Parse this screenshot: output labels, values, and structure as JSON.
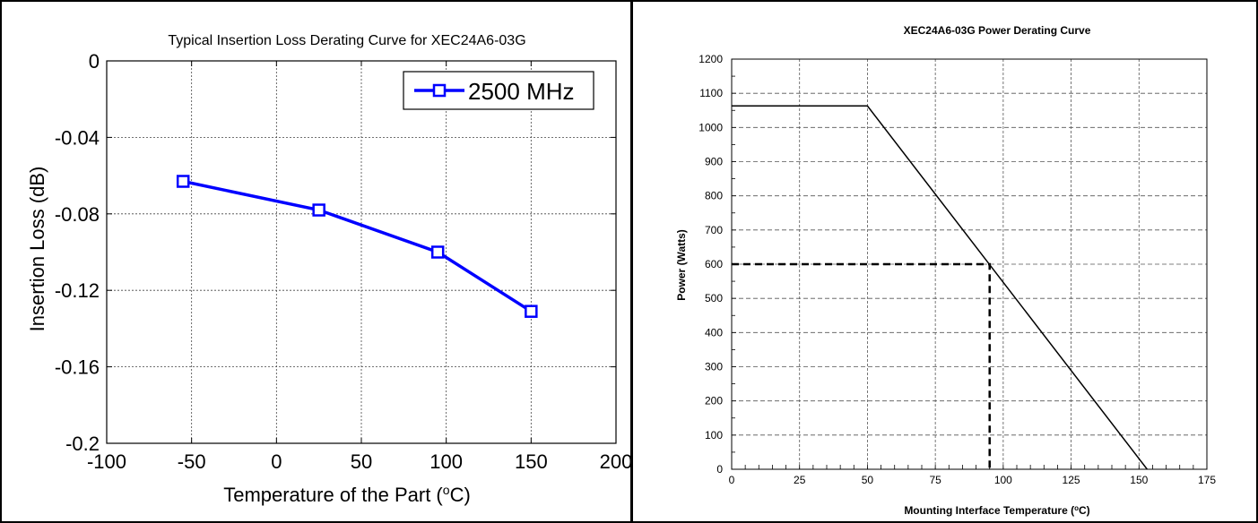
{
  "chart_data": [
    {
      "type": "line",
      "title": "Typical Insertion Loss Derating Curve for XEC24A6-03G",
      "xlabel_prefix": "Temperature of the Part (",
      "xlabel_sup": "o",
      "xlabel_suffix": "C)",
      "ylabel": "Insertion Loss (dB)",
      "xlim": [
        -100,
        200
      ],
      "ylim": [
        -0.2,
        0
      ],
      "x_ticks": [
        -100,
        -50,
        0,
        50,
        100,
        150,
        200
      ],
      "x_tick_labels": [
        "-100",
        "-50",
        "0",
        "50",
        "100",
        "150",
        "200"
      ],
      "y_ticks": [
        0,
        -0.04,
        -0.08,
        -0.12,
        -0.16,
        -0.2
      ],
      "y_tick_labels": [
        "0",
        "-0.04",
        "-0.08",
        "-0.12",
        "-0.16",
        "-0.2"
      ],
      "grid": true,
      "legend": "top-right",
      "series": [
        {
          "name": "2500 MHz",
          "color": "#0000ff",
          "marker": "square",
          "x": [
            -55,
            25,
            95,
            150
          ],
          "y": [
            -0.063,
            -0.078,
            -0.1,
            -0.131
          ]
        }
      ]
    },
    {
      "type": "line",
      "title": "XEC24A6-03G Power Derating Curve",
      "xlabel_prefix": "Mounting Interface  Temperature (",
      "xlabel_sup": "o",
      "xlabel_suffix": "C)",
      "ylabel": "Power (Watts)",
      "xlim": [
        0,
        175
      ],
      "ylim": [
        0,
        1200
      ],
      "x_ticks": [
        0,
        25,
        50,
        75,
        100,
        125,
        150,
        175
      ],
      "x_tick_labels": [
        "0",
        "25",
        "50",
        "75",
        "100",
        "125",
        "150",
        "175"
      ],
      "y_ticks": [
        0,
        100,
        200,
        300,
        400,
        500,
        600,
        700,
        800,
        900,
        1000,
        1100,
        1200
      ],
      "y_tick_labels": [
        "0",
        "100",
        "200",
        "300",
        "400",
        "500",
        "600",
        "700",
        "800",
        "900",
        "1000",
        "1100",
        "1200"
      ],
      "grid": true,
      "legend": "none",
      "series": [
        {
          "color": "#000000",
          "x": [
            0,
            50,
            153
          ],
          "y": [
            1063,
            1063,
            0
          ]
        }
      ],
      "reference_line": {
        "x": [
          0,
          95,
          95
        ],
        "y": [
          600,
          600,
          0
        ]
      }
    }
  ]
}
